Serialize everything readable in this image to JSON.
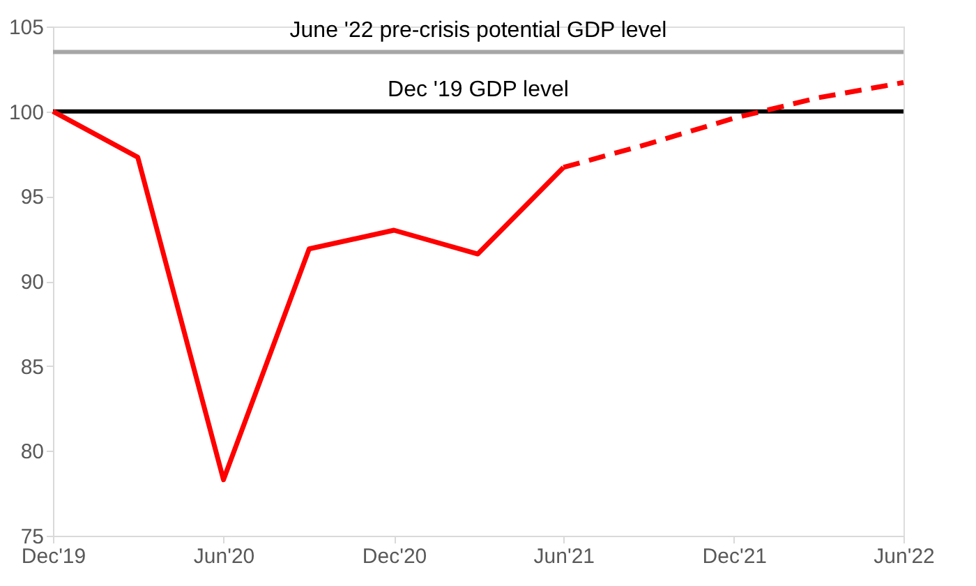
{
  "chart_data": {
    "type": "line",
    "x": [
      "2019-12",
      "2020-03",
      "2020-06",
      "2020-09",
      "2020-12",
      "2021-03",
      "2021-06"
    ],
    "series": [
      {
        "color": "#ff0000",
        "line_style": "solid",
        "values": [
          100,
          97.3,
          78.3,
          91.9,
          93.0,
          91.6,
          96.7
        ]
      },
      {
        "color": "#ff0000",
        "line_style": "dashed",
        "x": [
          "2021-06",
          "2021-09",
          "2021-12",
          "2022-03",
          "2022-06"
        ],
        "values": [
          96.7,
          98.1,
          99.6,
          100.8,
          101.7
        ]
      }
    ],
    "xlim": [
      "2019-12",
      "2022-06"
    ],
    "xticks": [
      {
        "value": "2019-12",
        "label": "Dec'19"
      },
      {
        "value": "2020-06",
        "label": "Jun'20"
      },
      {
        "value": "2020-12",
        "label": "Dec'20"
      },
      {
        "value": "2021-06",
        "label": "Jun'21"
      },
      {
        "value": "2021-12",
        "label": "Dec'21"
      },
      {
        "value": "2022-06",
        "label": "Jun'22"
      }
    ],
    "ylim": [
      75,
      105
    ],
    "yticks": [
      75,
      80,
      85,
      90,
      95,
      100,
      105
    ],
    "ref_lines": [
      {
        "axis": "y",
        "value": 103.5,
        "label": "June '22 pre-crisis potential GDP level",
        "color": "#a6a6a6"
      },
      {
        "axis": "y",
        "value": 100,
        "label": "Dec '19 GDP level",
        "color": "#000000"
      }
    ],
    "grid": false,
    "marker": "none"
  }
}
